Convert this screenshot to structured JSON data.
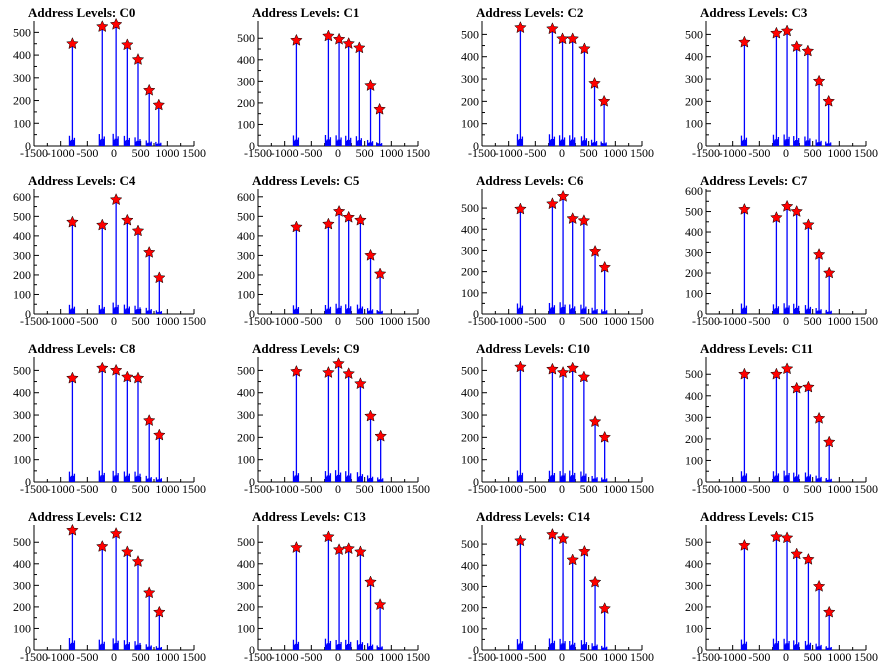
{
  "chart_data": {
    "type": "bar",
    "xlim": [
      -1500,
      1500
    ],
    "xticks": [
      -1500,
      -1000,
      -500,
      0,
      500,
      1000,
      1500
    ],
    "marker": "red star",
    "bar_color": "#0000ff",
    "marker_color": "#ff0000",
    "panels": [
      {
        "title": "Address Levels: C0",
        "ylim": [
          0,
          550
        ],
        "yticks": [
          0,
          100,
          200,
          300,
          400,
          500
        ],
        "peaks_x": [
          -780,
          -220,
          40,
          250,
          450,
          660,
          840
        ],
        "peaks_y": [
          450,
          525,
          535,
          445,
          380,
          245,
          180
        ]
      },
      {
        "title": "Address Levels: C1",
        "ylim": [
          0,
          580
        ],
        "yticks": [
          0,
          100,
          200,
          300,
          400,
          500
        ],
        "peaks_x": [
          -780,
          -180,
          20,
          200,
          400,
          610,
          780
        ],
        "peaks_y": [
          490,
          510,
          495,
          475,
          455,
          280,
          170
        ]
      },
      {
        "title": "Address Levels: C2",
        "ylim": [
          0,
          560
        ],
        "yticks": [
          0,
          100,
          200,
          300,
          400,
          500
        ],
        "peaks_x": [
          -780,
          -180,
          10,
          200,
          420,
          610,
          790
        ],
        "peaks_y": [
          530,
          525,
          480,
          480,
          435,
          280,
          200
        ]
      },
      {
        "title": "Address Levels: C3",
        "ylim": [
          0,
          560
        ],
        "yticks": [
          0,
          100,
          200,
          300,
          400,
          500
        ],
        "peaks_x": [
          -780,
          -180,
          20,
          200,
          410,
          620,
          800
        ],
        "peaks_y": [
          465,
          505,
          515,
          445,
          425,
          290,
          200
        ]
      },
      {
        "title": "Address Levels: C4",
        "ylim": [
          0,
          640
        ],
        "yticks": [
          0,
          100,
          200,
          300,
          400,
          500,
          600
        ],
        "peaks_x": [
          -780,
          -220,
          40,
          250,
          450,
          660,
          850
        ],
        "peaks_y": [
          470,
          455,
          585,
          480,
          425,
          315,
          185
        ]
      },
      {
        "title": "Address Levels: C5",
        "ylim": [
          0,
          640
        ],
        "yticks": [
          0,
          100,
          200,
          300,
          400,
          500,
          600
        ],
        "peaks_x": [
          -780,
          -180,
          20,
          200,
          420,
          610,
          790
        ],
        "peaks_y": [
          445,
          460,
          525,
          495,
          480,
          300,
          205
        ]
      },
      {
        "title": "Address Levels: C6",
        "ylim": [
          0,
          590
        ],
        "yticks": [
          0,
          100,
          200,
          300,
          400,
          500
        ],
        "peaks_x": [
          -780,
          -180,
          20,
          200,
          410,
          620,
          800
        ],
        "peaks_y": [
          495,
          520,
          555,
          450,
          440,
          295,
          220
        ]
      },
      {
        "title": "Address Levels: C7",
        "ylim": [
          0,
          610
        ],
        "yticks": [
          0,
          100,
          200,
          300,
          400,
          500,
          600
        ],
        "peaks_x": [
          -780,
          -180,
          20,
          200,
          420,
          620,
          810
        ],
        "peaks_y": [
          510,
          470,
          525,
          500,
          435,
          290,
          200
        ]
      },
      {
        "title": "Address Levels: C8",
        "ylim": [
          0,
          560
        ],
        "yticks": [
          0,
          100,
          200,
          300,
          400,
          500
        ],
        "peaks_x": [
          -780,
          -220,
          40,
          250,
          450,
          660,
          850
        ],
        "peaks_y": [
          465,
          510,
          500,
          470,
          465,
          275,
          210
        ]
      },
      {
        "title": "Address Levels: C9",
        "ylim": [
          0,
          560
        ],
        "yticks": [
          0,
          100,
          200,
          300,
          400,
          500
        ],
        "peaks_x": [
          -780,
          -180,
          10,
          200,
          420,
          610,
          800
        ],
        "peaks_y": [
          495,
          490,
          530,
          485,
          440,
          295,
          205
        ]
      },
      {
        "title": "Address Levels: C10",
        "ylim": [
          0,
          560
        ],
        "yticks": [
          0,
          100,
          200,
          300,
          400,
          500
        ],
        "peaks_x": [
          -780,
          -180,
          20,
          200,
          410,
          620,
          800
        ],
        "peaks_y": [
          515,
          505,
          490,
          510,
          470,
          270,
          200
        ]
      },
      {
        "title": "Address Levels: C11",
        "ylim": [
          0,
          580
        ],
        "yticks": [
          0,
          100,
          200,
          300,
          400,
          500
        ],
        "peaks_x": [
          -780,
          -180,
          20,
          200,
          420,
          620,
          810
        ],
        "peaks_y": [
          500,
          500,
          525,
          435,
          440,
          295,
          185
        ]
      },
      {
        "title": "Address Levels: C12",
        "ylim": [
          0,
          580
        ],
        "yticks": [
          0,
          100,
          200,
          300,
          400,
          500
        ],
        "peaks_x": [
          -780,
          -220,
          40,
          250,
          450,
          660,
          850
        ],
        "peaks_y": [
          555,
          480,
          540,
          455,
          410,
          265,
          175
        ]
      },
      {
        "title": "Address Levels: C13",
        "ylim": [
          0,
          580
        ],
        "yticks": [
          0,
          100,
          200,
          300,
          400,
          500
        ],
        "peaks_x": [
          -780,
          -180,
          20,
          200,
          420,
          610,
          790
        ],
        "peaks_y": [
          475,
          525,
          465,
          470,
          455,
          315,
          210
        ]
      },
      {
        "title": "Address Levels: C14",
        "ylim": [
          0,
          590
        ],
        "yticks": [
          0,
          100,
          200,
          300,
          400,
          500
        ],
        "peaks_x": [
          -780,
          -180,
          20,
          200,
          420,
          620,
          800
        ],
        "peaks_y": [
          515,
          545,
          525,
          425,
          465,
          320,
          195
        ]
      },
      {
        "title": "Address Levels: C15",
        "ylim": [
          0,
          580
        ],
        "yticks": [
          0,
          100,
          200,
          300,
          400,
          500
        ],
        "peaks_x": [
          -780,
          -180,
          20,
          200,
          420,
          620,
          810
        ],
        "peaks_y": [
          485,
          525,
          520,
          445,
          420,
          295,
          175
        ]
      }
    ]
  }
}
